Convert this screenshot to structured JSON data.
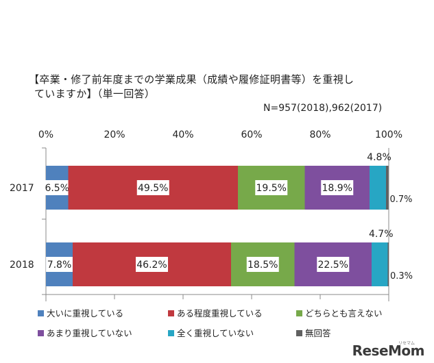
{
  "chart_data": {
    "type": "bar",
    "orientation": "horizontal",
    "stacked": true,
    "title_line1": "【卒業・修了前年度までの学業成果（成績や履修証明書等）を重視し",
    "title_line2": "ていますか】（単一回答）",
    "note": "N=957(2018),962(2017)",
    "categories": [
      "2017",
      "2018"
    ],
    "xlim": [
      0,
      100
    ],
    "x_ticks": [
      "0%",
      "20%",
      "40%",
      "60%",
      "80%",
      "100%"
    ],
    "series": [
      {
        "name": "大いに重視している",
        "color": "#4f81bd",
        "values": [
          6.5,
          7.8
        ],
        "labels": [
          "6.5%",
          "7.8%"
        ]
      },
      {
        "name": "ある程度重視している",
        "color": "#c0393f",
        "values": [
          49.5,
          46.2
        ],
        "labels": [
          "49.5%",
          "46.2%"
        ]
      },
      {
        "name": "どちらとも言えない",
        "color": "#77a94a",
        "values": [
          19.5,
          18.5
        ],
        "labels": [
          "19.5%",
          "18.5%"
        ]
      },
      {
        "name": "あまり重視していない",
        "color": "#7e4f9e",
        "values": [
          18.9,
          22.5
        ],
        "labels": [
          "18.9%",
          "22.5%"
        ]
      },
      {
        "name": "全く重視していない",
        "color": "#27a6c4",
        "values": [
          4.8,
          4.7
        ],
        "labels": [
          "4.8%",
          "4.7%"
        ]
      },
      {
        "name": "無回答",
        "color": "#606060",
        "values": [
          0.7,
          0.3
        ],
        "labels": [
          "0.7%",
          "0.3%"
        ]
      }
    ],
    "legend_position": "bottom",
    "grid": false
  },
  "logo": {
    "text": "ReseMom",
    "sub": "リセマム"
  }
}
